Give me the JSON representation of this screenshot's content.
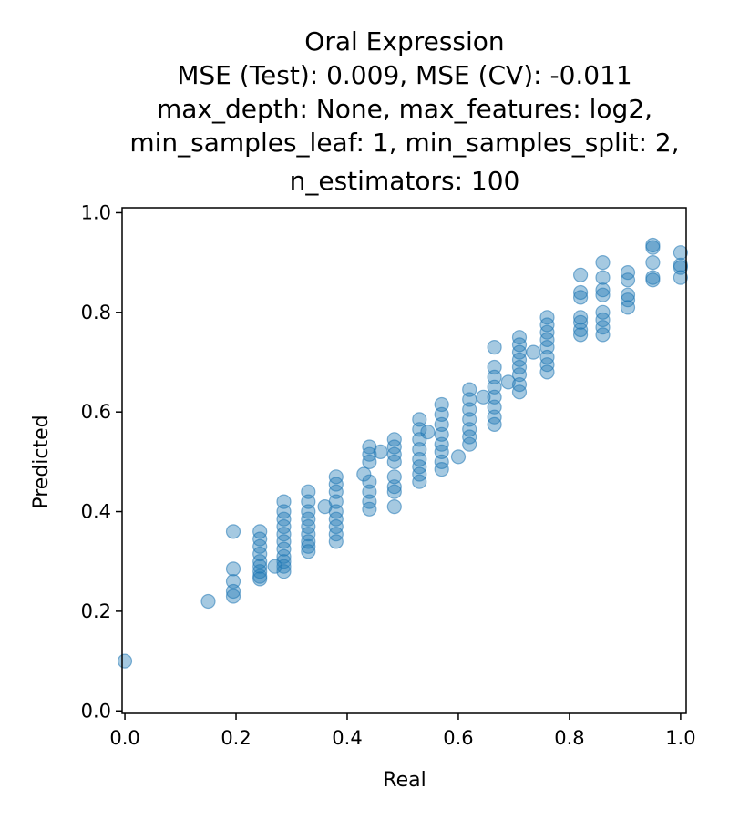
{
  "chart_data": {
    "type": "scatter",
    "title_lines": [
      "Oral Expression",
      "MSE (Test): 0.009, MSE (CV): -0.011",
      "max_depth: None, max_features: log2,",
      "min_samples_leaf: 1, min_samples_split: 2,",
      "n_estimators: 100"
    ],
    "xlabel": "Real",
    "ylabel": "Predicted",
    "xlim": [
      -0.005,
      1.01
    ],
    "ylim": [
      -0.005,
      1.01
    ],
    "xticks": [
      0.0,
      0.2,
      0.4,
      0.6,
      0.8,
      1.0
    ],
    "xtick_labels": [
      "0.0",
      "0.2",
      "0.4",
      "0.6",
      "0.8",
      "1.0"
    ],
    "yticks": [
      0.0,
      0.2,
      0.4,
      0.6,
      0.8,
      1.0
    ],
    "ytick_labels": [
      "0.0",
      "0.2",
      "0.4",
      "0.6",
      "0.8",
      "1.0"
    ],
    "grid": false,
    "legend": "none",
    "marker_color": "#1f77b4",
    "marker_alpha": 0.4,
    "points": [
      [
        0.0,
        0.1
      ],
      [
        0.15,
        0.22
      ],
      [
        0.195,
        0.36
      ],
      [
        0.195,
        0.285
      ],
      [
        0.195,
        0.26
      ],
      [
        0.195,
        0.24
      ],
      [
        0.195,
        0.23
      ],
      [
        0.243,
        0.36
      ],
      [
        0.243,
        0.345
      ],
      [
        0.243,
        0.33
      ],
      [
        0.243,
        0.315
      ],
      [
        0.243,
        0.3
      ],
      [
        0.243,
        0.29
      ],
      [
        0.243,
        0.28
      ],
      [
        0.243,
        0.27
      ],
      [
        0.243,
        0.265
      ],
      [
        0.27,
        0.29
      ],
      [
        0.286,
        0.42
      ],
      [
        0.286,
        0.4
      ],
      [
        0.286,
        0.385
      ],
      [
        0.286,
        0.37
      ],
      [
        0.286,
        0.355
      ],
      [
        0.286,
        0.34
      ],
      [
        0.286,
        0.325
      ],
      [
        0.286,
        0.31
      ],
      [
        0.286,
        0.3
      ],
      [
        0.286,
        0.29
      ],
      [
        0.286,
        0.28
      ],
      [
        0.33,
        0.44
      ],
      [
        0.33,
        0.42
      ],
      [
        0.33,
        0.4
      ],
      [
        0.33,
        0.385
      ],
      [
        0.33,
        0.37
      ],
      [
        0.33,
        0.355
      ],
      [
        0.33,
        0.34
      ],
      [
        0.33,
        0.33
      ],
      [
        0.33,
        0.32
      ],
      [
        0.36,
        0.41
      ],
      [
        0.38,
        0.47
      ],
      [
        0.38,
        0.455
      ],
      [
        0.38,
        0.44
      ],
      [
        0.38,
        0.42
      ],
      [
        0.38,
        0.4
      ],
      [
        0.38,
        0.385
      ],
      [
        0.38,
        0.37
      ],
      [
        0.38,
        0.355
      ],
      [
        0.38,
        0.34
      ],
      [
        0.43,
        0.475
      ],
      [
        0.44,
        0.53
      ],
      [
        0.44,
        0.515
      ],
      [
        0.44,
        0.5
      ],
      [
        0.44,
        0.46
      ],
      [
        0.44,
        0.44
      ],
      [
        0.44,
        0.42
      ],
      [
        0.44,
        0.405
      ],
      [
        0.46,
        0.52
      ],
      [
        0.485,
        0.545
      ],
      [
        0.485,
        0.53
      ],
      [
        0.485,
        0.515
      ],
      [
        0.485,
        0.5
      ],
      [
        0.485,
        0.47
      ],
      [
        0.485,
        0.45
      ],
      [
        0.485,
        0.44
      ],
      [
        0.485,
        0.41
      ],
      [
        0.53,
        0.585
      ],
      [
        0.53,
        0.565
      ],
      [
        0.53,
        0.545
      ],
      [
        0.53,
        0.525
      ],
      [
        0.53,
        0.505
      ],
      [
        0.53,
        0.49
      ],
      [
        0.53,
        0.475
      ],
      [
        0.53,
        0.46
      ],
      [
        0.545,
        0.56
      ],
      [
        0.57,
        0.615
      ],
      [
        0.57,
        0.595
      ],
      [
        0.57,
        0.575
      ],
      [
        0.57,
        0.555
      ],
      [
        0.57,
        0.535
      ],
      [
        0.57,
        0.52
      ],
      [
        0.57,
        0.5
      ],
      [
        0.57,
        0.485
      ],
      [
        0.6,
        0.51
      ],
      [
        0.62,
        0.645
      ],
      [
        0.62,
        0.625
      ],
      [
        0.62,
        0.605
      ],
      [
        0.62,
        0.585
      ],
      [
        0.62,
        0.565
      ],
      [
        0.62,
        0.55
      ],
      [
        0.62,
        0.535
      ],
      [
        0.645,
        0.63
      ],
      [
        0.665,
        0.73
      ],
      [
        0.665,
        0.69
      ],
      [
        0.665,
        0.67
      ],
      [
        0.665,
        0.65
      ],
      [
        0.665,
        0.63
      ],
      [
        0.665,
        0.61
      ],
      [
        0.665,
        0.59
      ],
      [
        0.665,
        0.575
      ],
      [
        0.69,
        0.66
      ],
      [
        0.71,
        0.75
      ],
      [
        0.71,
        0.735
      ],
      [
        0.71,
        0.72
      ],
      [
        0.71,
        0.705
      ],
      [
        0.71,
        0.69
      ],
      [
        0.71,
        0.675
      ],
      [
        0.71,
        0.655
      ],
      [
        0.71,
        0.64
      ],
      [
        0.735,
        0.72
      ],
      [
        0.76,
        0.79
      ],
      [
        0.76,
        0.775
      ],
      [
        0.76,
        0.76
      ],
      [
        0.76,
        0.745
      ],
      [
        0.76,
        0.73
      ],
      [
        0.76,
        0.71
      ],
      [
        0.76,
        0.695
      ],
      [
        0.76,
        0.68
      ],
      [
        0.82,
        0.875
      ],
      [
        0.82,
        0.84
      ],
      [
        0.82,
        0.83
      ],
      [
        0.82,
        0.79
      ],
      [
        0.82,
        0.78
      ],
      [
        0.82,
        0.765
      ],
      [
        0.82,
        0.755
      ],
      [
        0.86,
        0.9
      ],
      [
        0.86,
        0.87
      ],
      [
        0.86,
        0.845
      ],
      [
        0.86,
        0.835
      ],
      [
        0.86,
        0.8
      ],
      [
        0.86,
        0.785
      ],
      [
        0.86,
        0.77
      ],
      [
        0.86,
        0.755
      ],
      [
        0.905,
        0.88
      ],
      [
        0.905,
        0.865
      ],
      [
        0.905,
        0.835
      ],
      [
        0.905,
        0.825
      ],
      [
        0.905,
        0.81
      ],
      [
        0.95,
        0.935
      ],
      [
        0.95,
        0.93
      ],
      [
        0.95,
        0.9
      ],
      [
        0.95,
        0.87
      ],
      [
        0.95,
        0.865
      ],
      [
        1.0,
        0.92
      ],
      [
        1.0,
        0.895
      ],
      [
        1.0,
        0.89
      ],
      [
        1.0,
        0.87
      ]
    ]
  }
}
